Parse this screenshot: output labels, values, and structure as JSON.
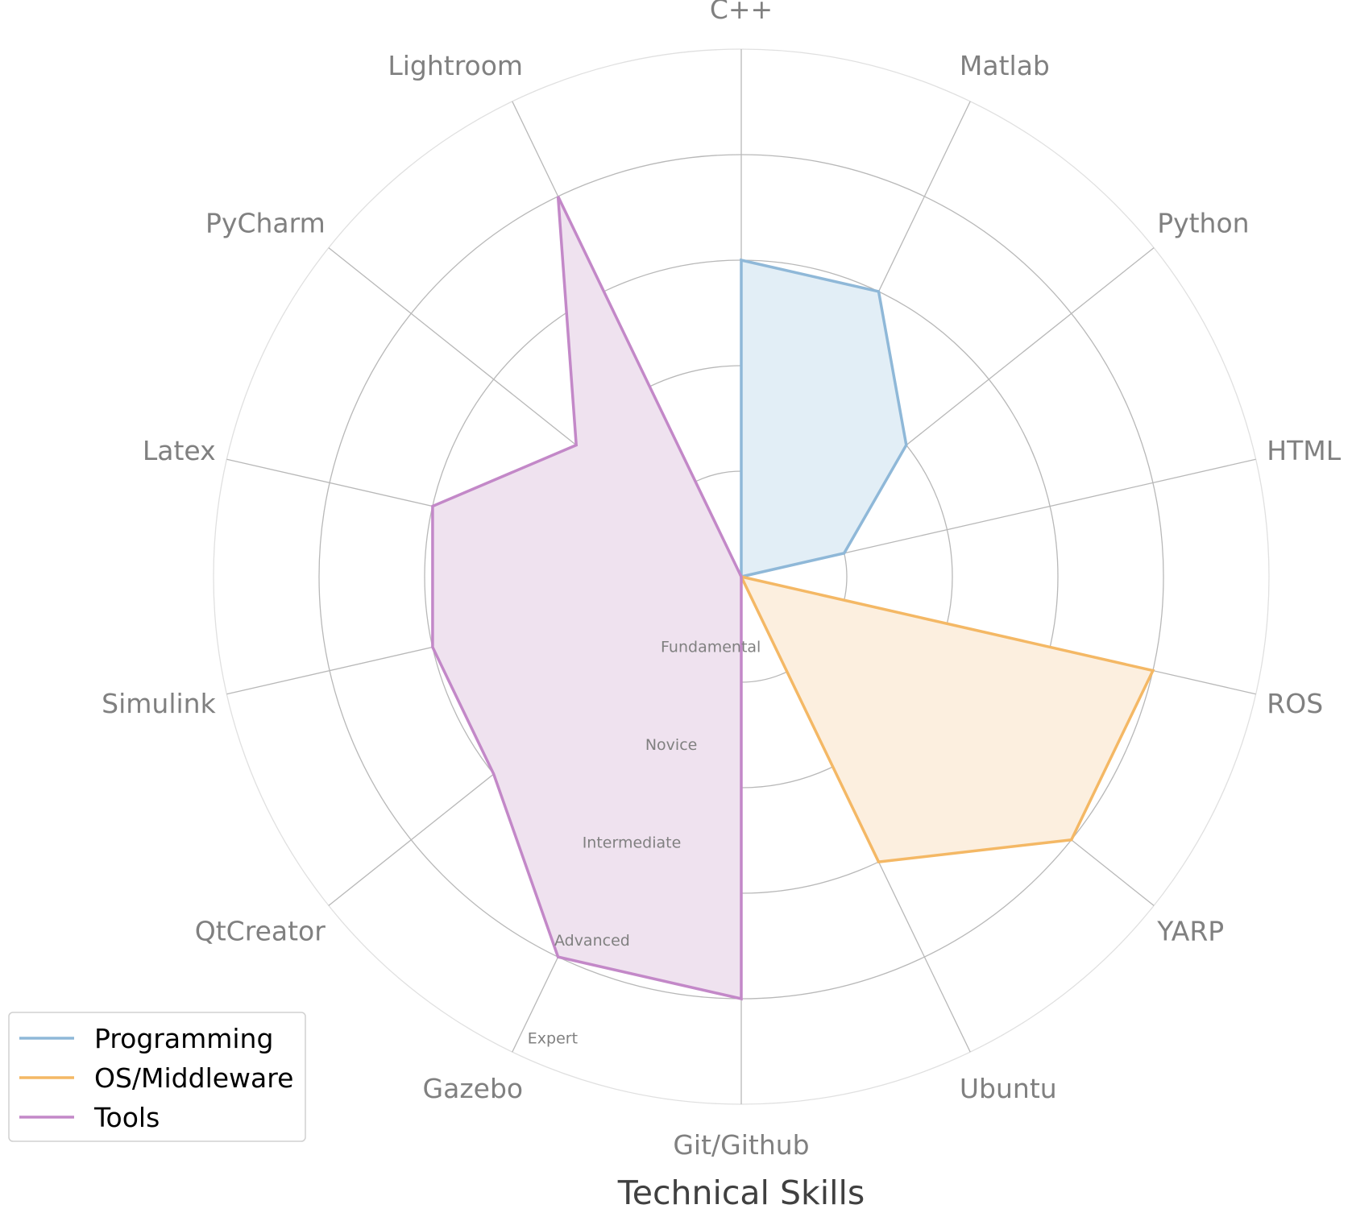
{
  "chart_data": {
    "type": "radar",
    "title": "Technical Skills",
    "categories": [
      "C++",
      "Matlab",
      "Python",
      "HTML",
      "ROS",
      "YARP",
      "Ubuntu",
      "Git/Github",
      "Gazebo",
      "QtCreator",
      "Simulink",
      "Latex",
      "PyCharm",
      "Lightroom"
    ],
    "levels": [
      "Fundamental",
      "Novice",
      "Intermediate",
      "Advanced",
      "Expert"
    ],
    "rmax": 5,
    "grid": true,
    "legend_position": "lower-left",
    "series": [
      {
        "name": "Programming",
        "color": "#8fb8d8",
        "fill": "#e2eef6",
        "values": [
          3,
          3,
          2,
          1,
          0,
          0,
          0,
          0,
          0,
          0,
          0,
          0,
          0,
          0
        ]
      },
      {
        "name": "OS/Middleware",
        "color": "#f4b865",
        "fill": "#fcefdf",
        "values": [
          0,
          0,
          0,
          0,
          4,
          4,
          3,
          0,
          0,
          0,
          0,
          0,
          0,
          0
        ]
      },
      {
        "name": "Tools",
        "color": "#c388c8",
        "fill": "#efe2ef",
        "values": [
          0,
          0,
          0,
          0,
          0,
          0,
          0,
          4,
          4,
          3,
          3,
          3,
          2,
          4
        ]
      }
    ]
  }
}
